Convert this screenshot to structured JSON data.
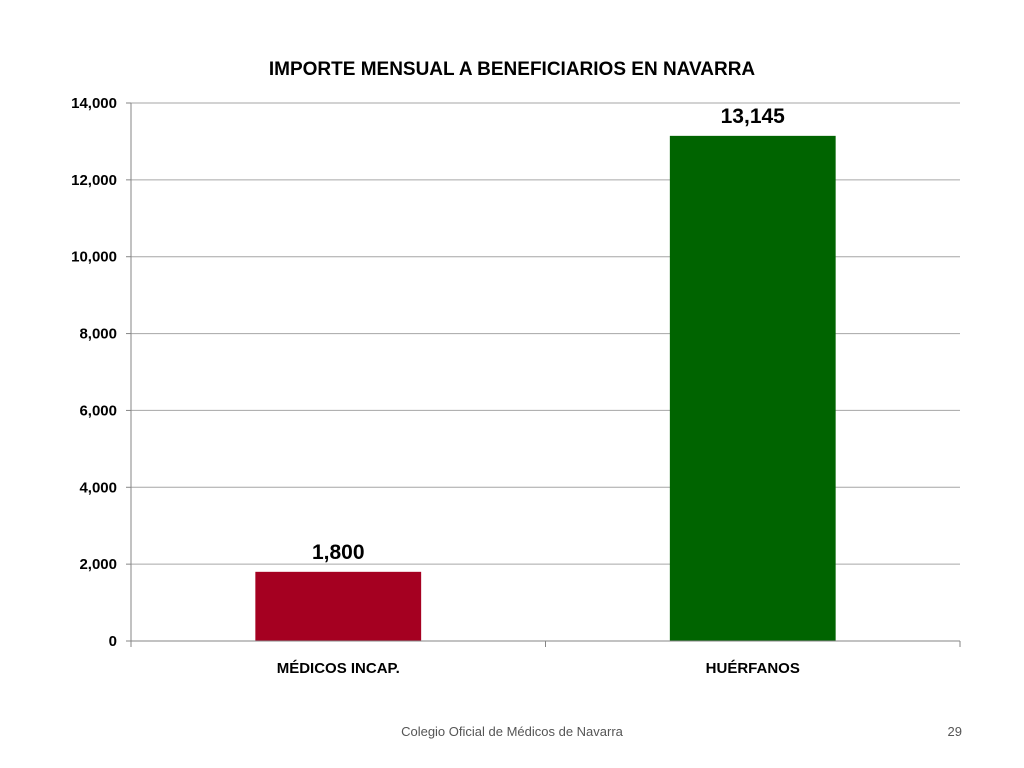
{
  "colors": {
    "grid": "#a6a6a6",
    "axis": "#868686",
    "series": [
      "#a50021",
      "#006400"
    ]
  },
  "chart_data": {
    "type": "bar",
    "title": "IMPORTE MENSUAL A BENEFICIARIOS EN NAVARRA",
    "categories": [
      "MÉDICOS INCAP.",
      "HUÉRFANOS"
    ],
    "values": [
      1800,
      13145
    ],
    "value_labels": [
      "1,800",
      "13,145"
    ],
    "bar_colors": [
      "#a50021",
      "#006400"
    ],
    "ylim": [
      0,
      14000
    ],
    "yticks": [
      0,
      2000,
      4000,
      6000,
      8000,
      10000,
      12000,
      14000
    ],
    "ytick_labels": [
      "0",
      "2,000",
      "4,000",
      "6,000",
      "8,000",
      "10,000",
      "12,000",
      "14,000"
    ],
    "grid": true,
    "legend": "none",
    "xlabel": "",
    "ylabel": ""
  },
  "footer": {
    "organization": "Colegio Oficial de Médicos de Navarra",
    "page_number": "29"
  }
}
